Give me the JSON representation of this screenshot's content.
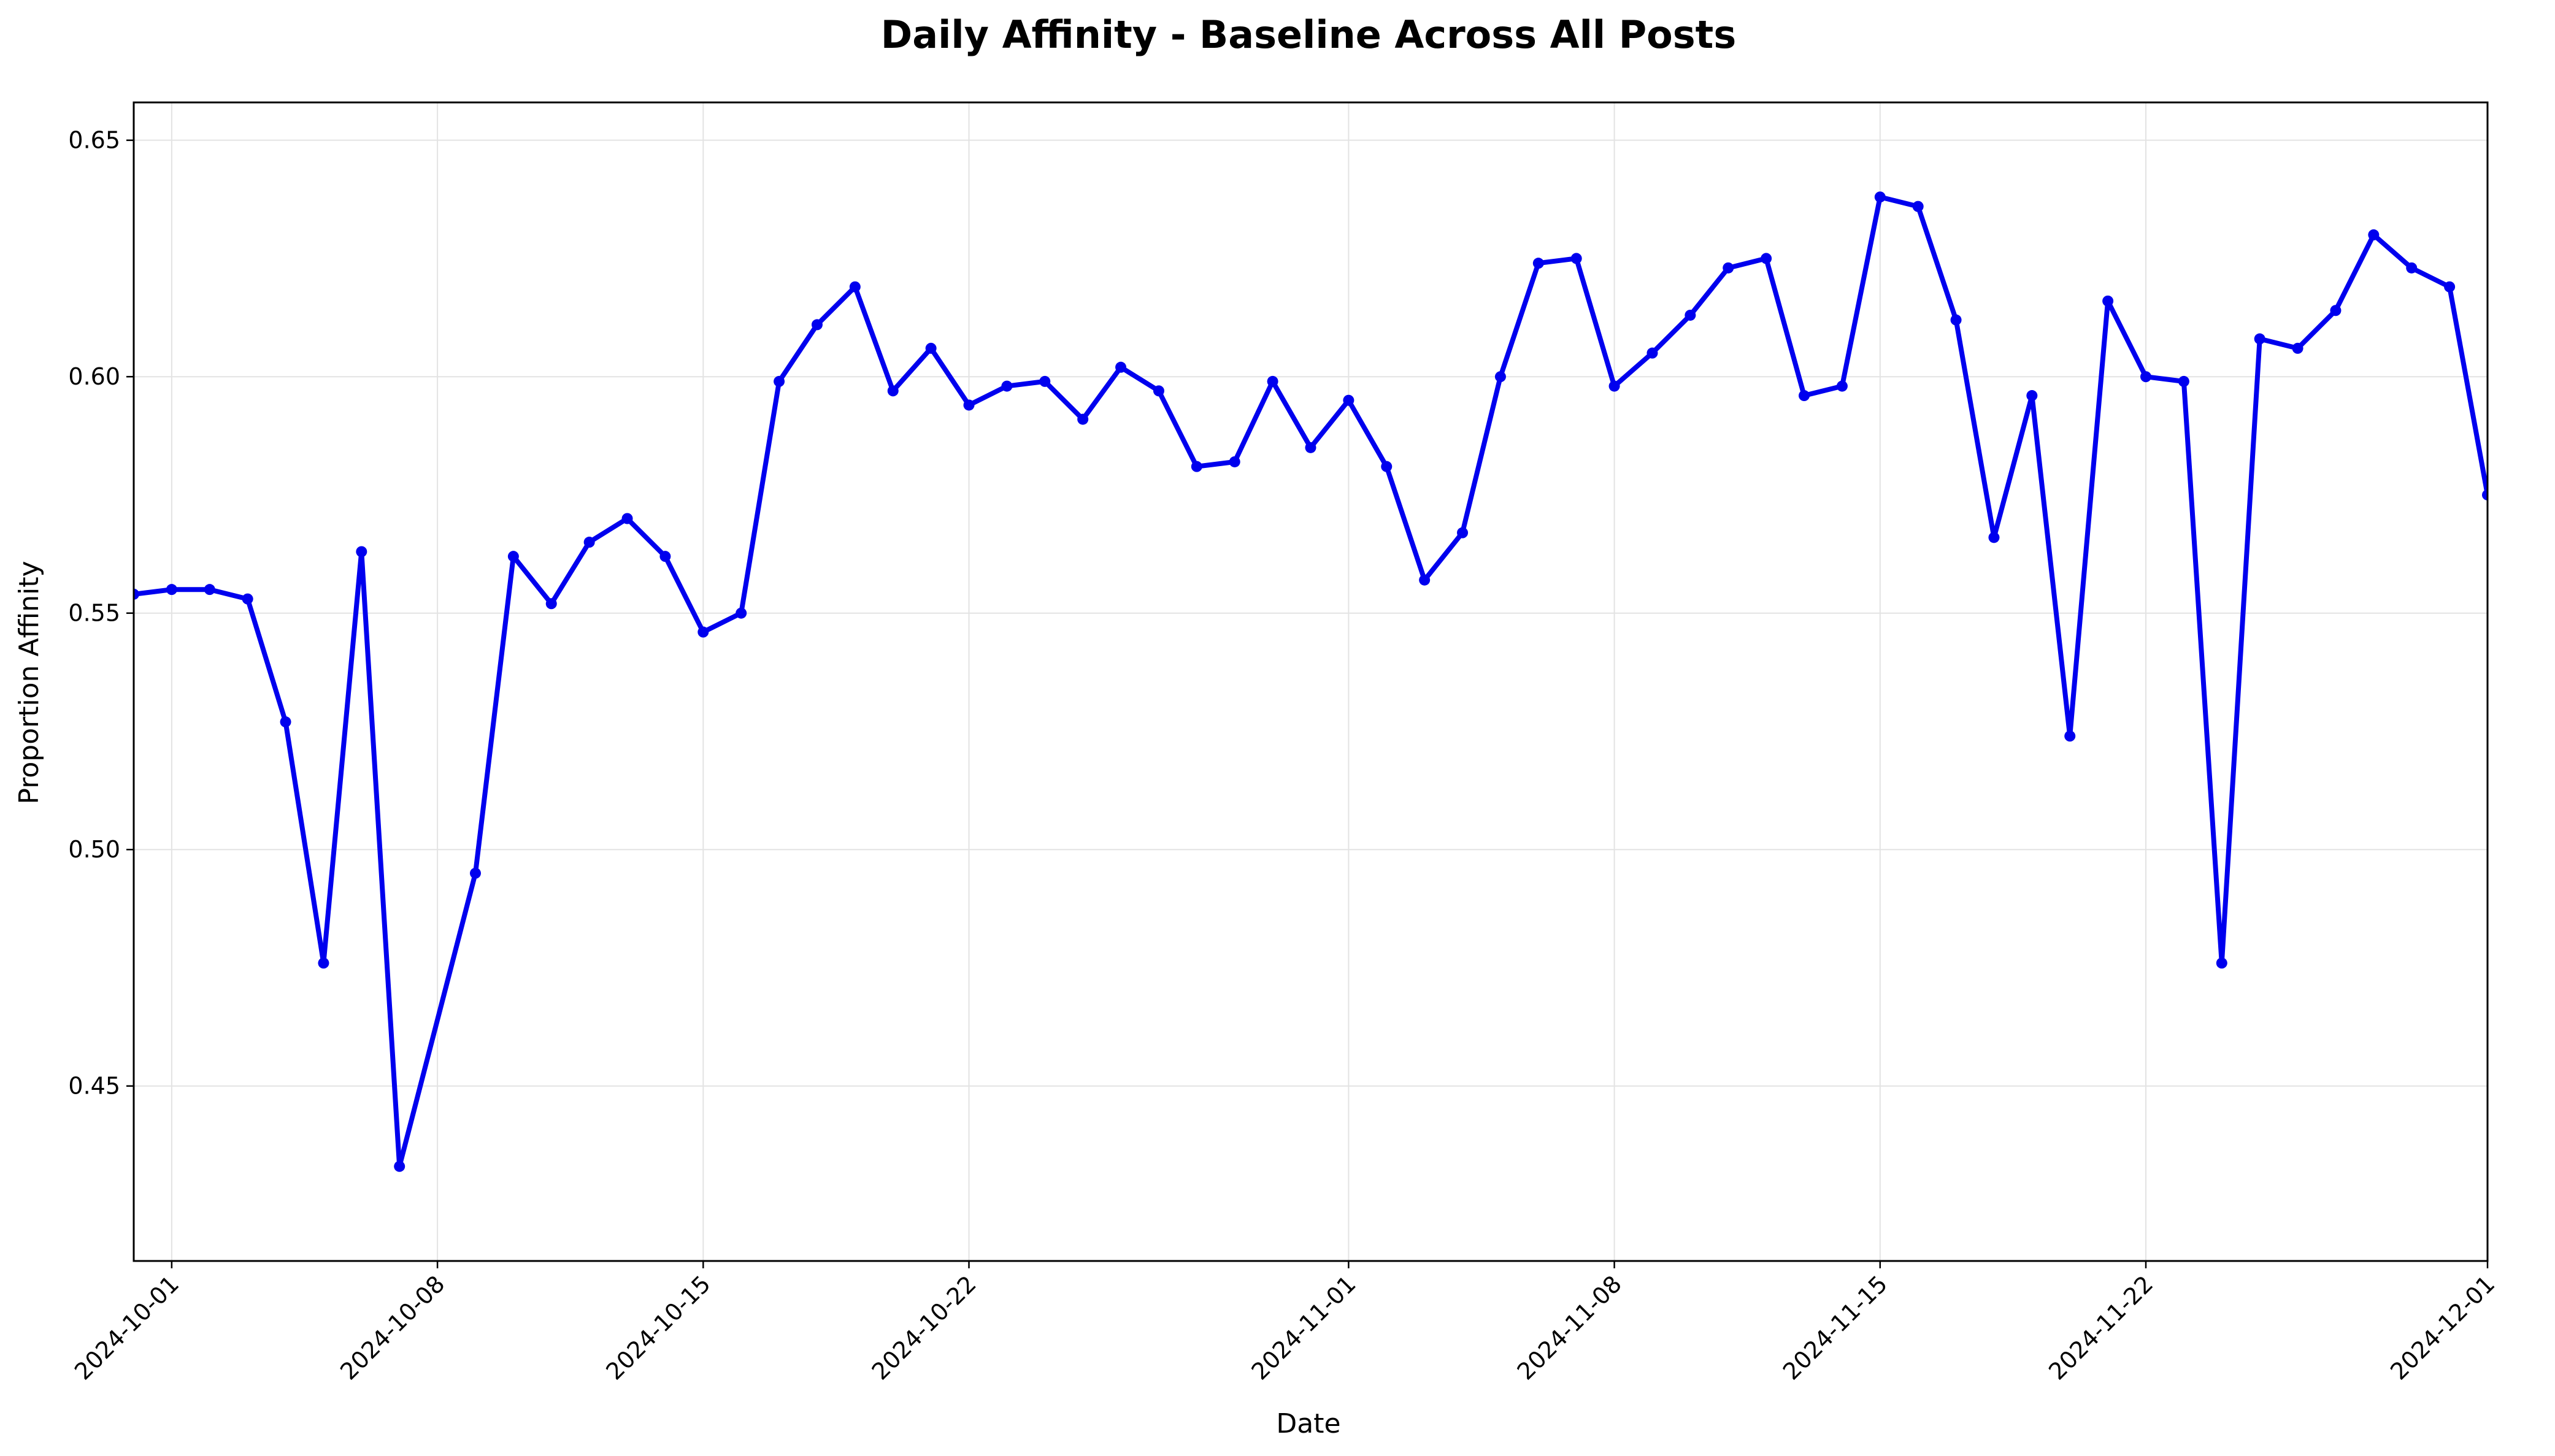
{
  "chart_data": {
    "type": "line",
    "title": "Daily Affinity - Baseline Across All Posts",
    "xlabel": "Date",
    "ylabel": "Proportion Affinity",
    "xlim": [
      "2024-09-30",
      "2024-12-01"
    ],
    "ylim": [
      0.413,
      0.658
    ],
    "x_ticks": [
      "2024-10-01",
      "2024-10-08",
      "2024-10-15",
      "2024-10-22",
      "2024-11-01",
      "2024-11-08",
      "2024-11-15",
      "2024-11-22",
      "2024-12-01"
    ],
    "y_ticks": [
      "0.45",
      "0.50",
      "0.55",
      "0.60",
      "0.65"
    ],
    "grid": true,
    "legend": "none",
    "series": [
      {
        "color": "#0000ee",
        "x": [
          "2024-09-30",
          "2024-10-01",
          "2024-10-02",
          "2024-10-03",
          "2024-10-04",
          "2024-10-05",
          "2024-10-06",
          "2024-10-07",
          "2024-10-09",
          "2024-10-10",
          "2024-10-11",
          "2024-10-12",
          "2024-10-13",
          "2024-10-14",
          "2024-10-15",
          "2024-10-16",
          "2024-10-17",
          "2024-10-18",
          "2024-10-19",
          "2024-10-20",
          "2024-10-21",
          "2024-10-22",
          "2024-10-23",
          "2024-10-24",
          "2024-10-25",
          "2024-10-26",
          "2024-10-27",
          "2024-10-28",
          "2024-10-29",
          "2024-10-30",
          "2024-10-31",
          "2024-11-01",
          "2024-11-02",
          "2024-11-03",
          "2024-11-04",
          "2024-11-05",
          "2024-11-06",
          "2024-11-07",
          "2024-11-08",
          "2024-11-09",
          "2024-11-10",
          "2024-11-11",
          "2024-11-12",
          "2024-11-13",
          "2024-11-14",
          "2024-11-15",
          "2024-11-16",
          "2024-11-17",
          "2024-11-18",
          "2024-11-19",
          "2024-11-20",
          "2024-11-21",
          "2024-11-22",
          "2024-11-23",
          "2024-11-24",
          "2024-11-25",
          "2024-11-26",
          "2024-11-27",
          "2024-11-28",
          "2024-11-29",
          "2024-11-30",
          "2024-12-01"
        ],
        "y": [
          0.554,
          0.555,
          0.555,
          0.553,
          0.527,
          0.476,
          0.563,
          0.433,
          0.495,
          0.562,
          0.552,
          0.565,
          0.57,
          0.562,
          0.546,
          0.55,
          0.599,
          0.611,
          0.619,
          0.597,
          0.606,
          0.594,
          0.598,
          0.599,
          0.591,
          0.602,
          0.597,
          0.581,
          0.582,
          0.599,
          0.585,
          0.595,
          0.581,
          0.557,
          0.567,
          0.6,
          0.624,
          0.625,
          0.598,
          0.605,
          0.613,
          0.623,
          0.625,
          0.596,
          0.598,
          0.638,
          0.636,
          0.612,
          0.566,
          0.596,
          0.524,
          0.616,
          0.6,
          0.599,
          0.476,
          0.608,
          0.606,
          0.614,
          0.63,
          0.623,
          0.619,
          0.575
        ]
      }
    ]
  }
}
